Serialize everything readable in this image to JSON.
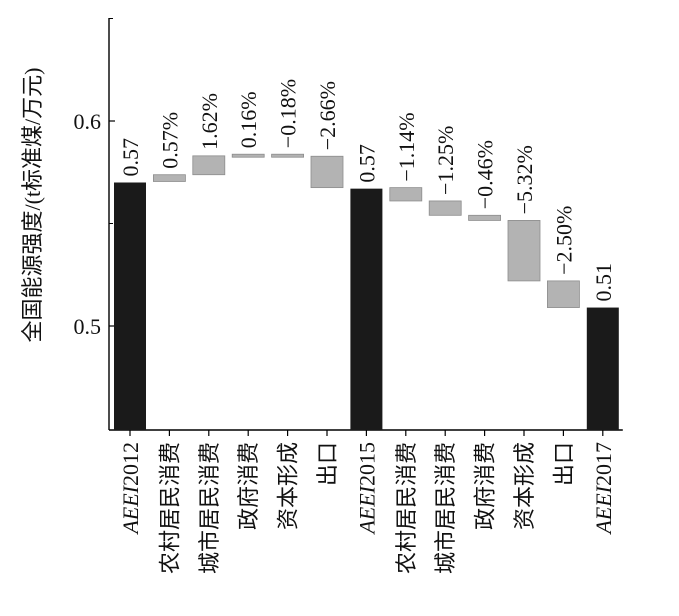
{
  "chart_data": {
    "type": "bar",
    "subtype": "waterfall",
    "ylabel": "全国能源强度/(t标准煤/万元)",
    "ylim": [
      0.45,
      0.65
    ],
    "yticks": [
      0.5,
      0.6
    ],
    "ytick_labels": [
      "0.5",
      "0.6"
    ],
    "grid": false,
    "colors": {
      "total": "#1a1a1a",
      "delta": "#b3b3b3",
      "delta_edge": "#8c8c8c",
      "axis": "#000000"
    },
    "categories": [
      "AEEI2012",
      "农村居民消费",
      "城市居民消费",
      "政府消费",
      "资本形成",
      "出口",
      "AEEI2015",
      "农村居民消费",
      "城市居民消费",
      "政府消费",
      "资本形成",
      "出口",
      "AEEI2017"
    ],
    "bars": [
      {
        "kind": "total",
        "value": 0.57,
        "label": "0.57"
      },
      {
        "kind": "delta",
        "start": 0.5705,
        "end": 0.5738,
        "label": "0.57%"
      },
      {
        "kind": "delta",
        "start": 0.5738,
        "end": 0.583,
        "label": "1.62%"
      },
      {
        "kind": "delta",
        "start": 0.583,
        "end": 0.5838,
        "label": "0.16%"
      },
      {
        "kind": "delta",
        "start": 0.5838,
        "end": 0.5828,
        "label": "−0.18%"
      },
      {
        "kind": "delta",
        "start": 0.5828,
        "end": 0.5675,
        "label": "−2.66%"
      },
      {
        "kind": "total",
        "value": 0.567,
        "label": "0.57"
      },
      {
        "kind": "delta",
        "start": 0.5675,
        "end": 0.561,
        "label": "−1.14%"
      },
      {
        "kind": "delta",
        "start": 0.561,
        "end": 0.554,
        "label": "−1.25%"
      },
      {
        "kind": "delta",
        "start": 0.554,
        "end": 0.5515,
        "label": "−0.46%"
      },
      {
        "kind": "delta",
        "start": 0.5515,
        "end": 0.522,
        "label": "−5.32%"
      },
      {
        "kind": "delta",
        "start": 0.522,
        "end": 0.509,
        "label": "−2.50%"
      },
      {
        "kind": "total",
        "value": 0.509,
        "label": "0.51"
      }
    ]
  }
}
